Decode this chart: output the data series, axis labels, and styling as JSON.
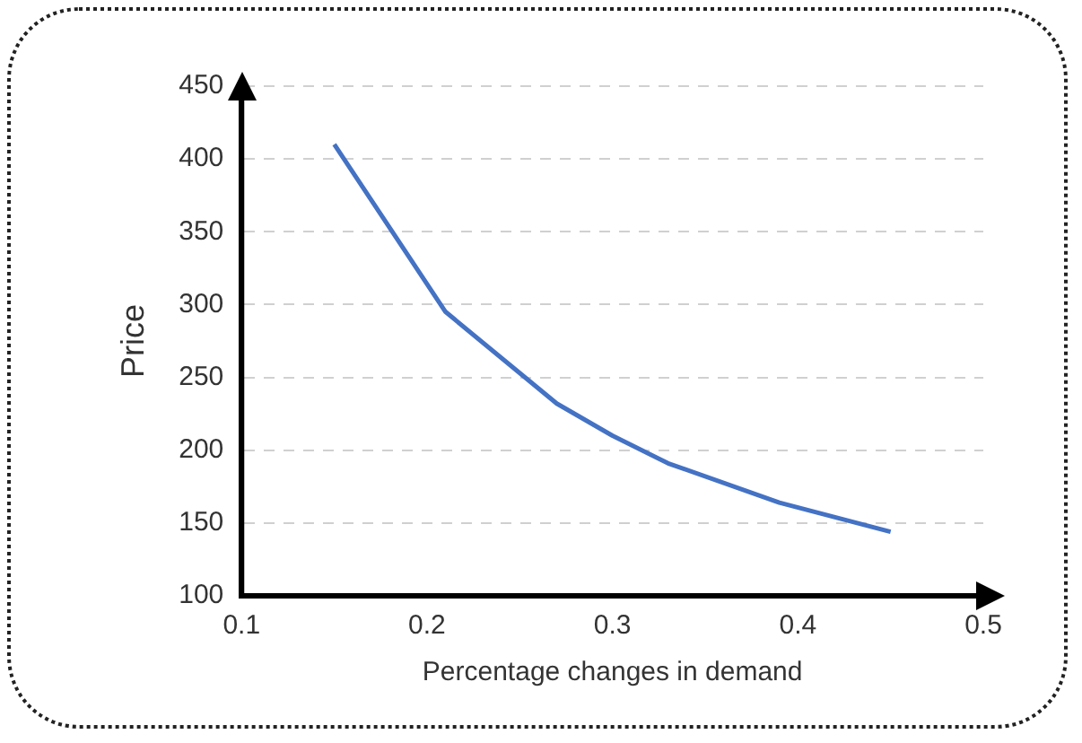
{
  "chart_data": {
    "type": "line",
    "xlabel": "Percentage changes in demand",
    "ylabel": "Price",
    "x": [
      0.15,
      0.21,
      0.27,
      0.3,
      0.33,
      0.39,
      0.45
    ],
    "series": [
      {
        "color": "#4472c4",
        "values": [
          410,
          295,
          232,
          210,
          191,
          164,
          144
        ]
      }
    ],
    "xlim": [
      0.1,
      0.5
    ],
    "xticks": [
      0.1,
      0.2,
      0.3,
      0.4,
      0.5
    ],
    "ylim": [
      100,
      450
    ],
    "yticks": [
      100,
      150,
      200,
      250,
      300,
      350,
      400,
      450
    ],
    "grid": "y",
    "legend": false,
    "marker": "none",
    "line_style": "solid"
  }
}
